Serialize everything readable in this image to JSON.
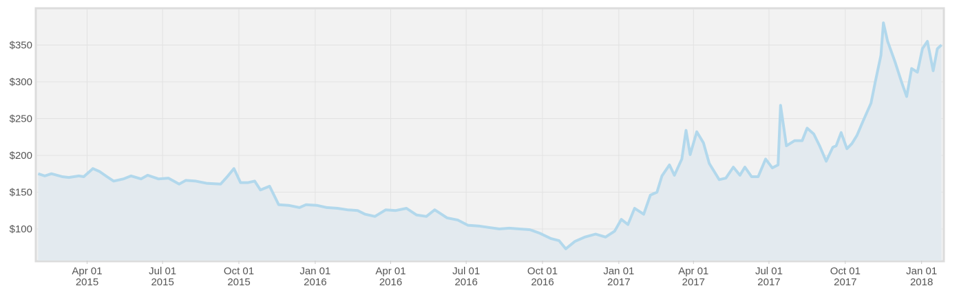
{
  "chart_data": {
    "type": "area",
    "color": "#b2d8ec",
    "fill": "#e3eaef",
    "grid": true,
    "ylim": [
      57,
      399
    ],
    "yticks": [
      {
        "value": 100,
        "label": "$100"
      },
      {
        "value": 150,
        "label": "$150"
      },
      {
        "value": 200,
        "label": "$200"
      },
      {
        "value": 250,
        "label": "$250"
      },
      {
        "value": 300,
        "label": "$300"
      },
      {
        "value": 350,
        "label": "$350"
      }
    ],
    "xlim": [
      "2015-01-30",
      "2018-01-27"
    ],
    "xticks": [
      {
        "value": "2015-04-01",
        "label": "Apr 01\n2015"
      },
      {
        "value": "2015-07-01",
        "label": "Jul 01\n2015"
      },
      {
        "value": "2015-10-01",
        "label": "Oct 01\n2015"
      },
      {
        "value": "2016-01-01",
        "label": "Jan 01\n2016"
      },
      {
        "value": "2016-04-01",
        "label": "Apr 01\n2016"
      },
      {
        "value": "2016-07-01",
        "label": "Jul 01\n2016"
      },
      {
        "value": "2016-10-01",
        "label": "Oct 01\n2016"
      },
      {
        "value": "2017-01-01",
        "label": "Jan 01\n2017"
      },
      {
        "value": "2017-04-01",
        "label": "Apr 01\n2017"
      },
      {
        "value": "2017-07-01",
        "label": "Jul 01\n2017"
      },
      {
        "value": "2017-10-01",
        "label": "Oct 01\n2017"
      },
      {
        "value": "2018-01-01",
        "label": "Jan 01\n2018"
      }
    ],
    "x": [
      "2015-02-01",
      "2015-02-09",
      "2015-02-17",
      "2015-03-02",
      "2015-03-10",
      "2015-03-22",
      "2015-03-28",
      "2015-04-08",
      "2015-04-16",
      "2015-04-25",
      "2015-05-03",
      "2015-05-15",
      "2015-05-24",
      "2015-06-05",
      "2015-06-13",
      "2015-06-26",
      "2015-07-08",
      "2015-07-21",
      "2015-07-29",
      "2015-08-10",
      "2015-08-23",
      "2015-09-09",
      "2015-09-17",
      "2015-09-25",
      "2015-10-03",
      "2015-10-12",
      "2015-10-20",
      "2015-10-27",
      "2015-11-07",
      "2015-11-18",
      "2015-11-30",
      "2015-12-13",
      "2015-12-21",
      "2016-01-03",
      "2016-01-15",
      "2016-01-28",
      "2016-02-09",
      "2016-02-21",
      "2016-03-01",
      "2016-03-13",
      "2016-03-26",
      "2016-04-07",
      "2016-04-20",
      "2016-05-02",
      "2016-05-14",
      "2016-05-24",
      "2016-06-08",
      "2016-06-21",
      "2016-07-03",
      "2016-07-16",
      "2016-07-28",
      "2016-08-10",
      "2016-08-22",
      "2016-09-03",
      "2016-09-16",
      "2016-09-28",
      "2016-10-11",
      "2016-10-21",
      "2016-10-29",
      "2016-11-09",
      "2016-11-21",
      "2016-12-04",
      "2016-12-16",
      "2016-12-27",
      "2017-01-04",
      "2017-01-12",
      "2017-01-20",
      "2017-01-31",
      "2017-02-08",
      "2017-02-16",
      "2017-02-22",
      "2017-03-03",
      "2017-03-09",
      "2017-03-18",
      "2017-03-23",
      "2017-03-28",
      "2017-04-05",
      "2017-04-13",
      "2017-04-20",
      "2017-05-02",
      "2017-05-10",
      "2017-05-19",
      "2017-05-27",
      "2017-06-02",
      "2017-06-10",
      "2017-06-18",
      "2017-06-27",
      "2017-07-05",
      "2017-07-12",
      "2017-07-15",
      "2017-07-22",
      "2017-08-01",
      "2017-08-10",
      "2017-08-16",
      "2017-08-24",
      "2017-08-31",
      "2017-09-08",
      "2017-09-16",
      "2017-09-20",
      "2017-09-26",
      "2017-10-03",
      "2017-10-09",
      "2017-10-15",
      "2017-10-23",
      "2017-11-01",
      "2017-11-06",
      "2017-11-13",
      "2017-11-16",
      "2017-11-21",
      "2017-11-30",
      "2017-12-08",
      "2017-12-14",
      "2017-12-20",
      "2017-12-27",
      "2018-01-02",
      "2018-01-08",
      "2018-01-15",
      "2018-01-20",
      "2018-01-25"
    ],
    "values": [
      175,
      172,
      175,
      171,
      170,
      172,
      171,
      182,
      178,
      171,
      165,
      168,
      172,
      168,
      173,
      168,
      169,
      161,
      166,
      165,
      162,
      161,
      171,
      182,
      163,
      163,
      165,
      153,
      158,
      133,
      132,
      129,
      133,
      132,
      129,
      128,
      126,
      125,
      120,
      117,
      126,
      125,
      128,
      119,
      117,
      126,
      115,
      112,
      105,
      104,
      102,
      100,
      101,
      100,
      99,
      94,
      87,
      84,
      73,
      83,
      89,
      93,
      89,
      97,
      113,
      106,
      128,
      120,
      146,
      150,
      172,
      187,
      173,
      195,
      234,
      201,
      232,
      217,
      189,
      167,
      169,
      184,
      173,
      184,
      171,
      171,
      195,
      183,
      187,
      268,
      213,
      220,
      220,
      237,
      229,
      213,
      192,
      211,
      213,
      231,
      209,
      216,
      227,
      248,
      271,
      299,
      336,
      380,
      355,
      327,
      299,
      280,
      318,
      313,
      345,
      355,
      315,
      345,
      350
    ]
  }
}
